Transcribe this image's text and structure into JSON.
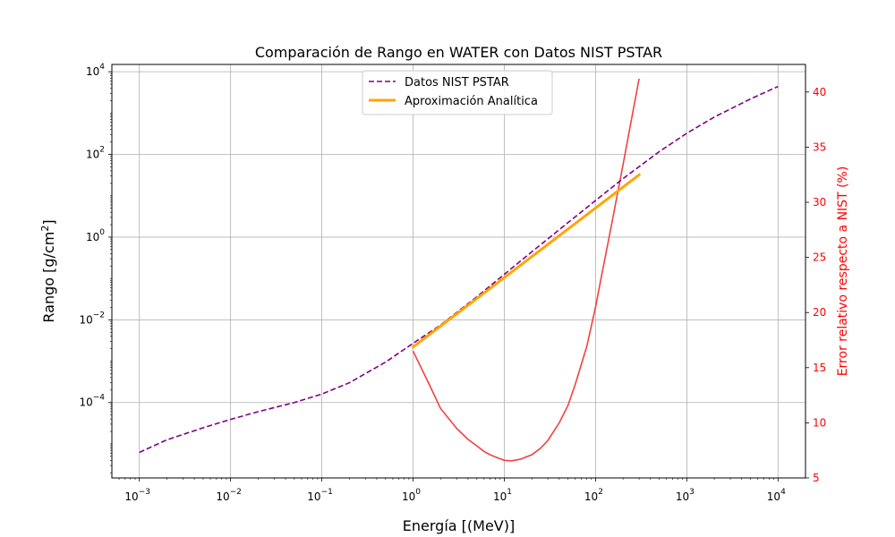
{
  "chart_data": {
    "type": "line",
    "title": "Comparación de Rango en WATER con Datos NIST PSTAR",
    "xlabel": "Energía [(MeV)]",
    "ylabel": "Rango [g/cm²]",
    "ylabel_parts": {
      "main": "Rango [g/cm",
      "sup": "2",
      "end": "]"
    },
    "y2label": "Error relativo respecto a NIST (%)",
    "xscale": "log",
    "yscale": "log",
    "xlim": [
      0.0005,
      20000
    ],
    "ylim": [
      1.5e-06,
      15000
    ],
    "y2lim": [
      5,
      42.5
    ],
    "grid": true,
    "legend_position": "top-center",
    "x_ticks": [
      {
        "value": 0.001,
        "base": "10",
        "exp": "−3"
      },
      {
        "value": 0.01,
        "base": "10",
        "exp": "−2"
      },
      {
        "value": 0.1,
        "base": "10",
        "exp": "−1"
      },
      {
        "value": 1,
        "base": "10",
        "exp": "0"
      },
      {
        "value": 10,
        "base": "10",
        "exp": "1"
      },
      {
        "value": 100,
        "base": "10",
        "exp": "2"
      },
      {
        "value": 1000,
        "base": "10",
        "exp": "3"
      },
      {
        "value": 10000,
        "base": "10",
        "exp": "4"
      }
    ],
    "y_ticks": [
      {
        "value": 0.0001,
        "base": "10",
        "exp": "−4"
      },
      {
        "value": 0.01,
        "base": "10",
        "exp": "−2"
      },
      {
        "value": 1,
        "base": "10",
        "exp": "0"
      },
      {
        "value": 100,
        "base": "10",
        "exp": "2"
      },
      {
        "value": 10000,
        "base": "10",
        "exp": "4"
      }
    ],
    "y2_ticks": [
      5,
      10,
      15,
      20,
      25,
      30,
      35,
      40
    ],
    "colors": {
      "nist": "#800080",
      "approx": "#ffa500",
      "error": "#f44040",
      "grid": "#b0b0b0",
      "y2axis": "#ff0000"
    },
    "series": [
      {
        "name": "Datos NIST PSTAR",
        "axis": "left",
        "style": "dashed",
        "x": [
          0.001,
          0.002,
          0.005,
          0.01,
          0.02,
          0.05,
          0.1,
          0.2,
          0.5,
          1,
          2,
          5,
          10,
          20,
          50,
          100,
          200,
          500,
          1000,
          2000,
          5000,
          10000
        ],
        "y": [
          6.2e-06,
          1.25e-05,
          2.45e-05,
          3.9e-05,
          6e-05,
          0.0001,
          0.00016,
          0.0003,
          0.00095,
          0.0027,
          0.0075,
          0.036,
          0.126,
          0.44,
          2.25,
          7.7,
          26.0,
          117,
          325,
          800,
          2200,
          4400
        ]
      },
      {
        "name": "Aproximación Analítica",
        "axis": "left",
        "style": "solid",
        "x": [
          1,
          300
        ],
        "y": [
          0.0022,
          32
        ]
      },
      {
        "name": "",
        "axis": "right",
        "style": "solid",
        "x": [
          1,
          1.5,
          2,
          3,
          4,
          5,
          6,
          7,
          8,
          10,
          12,
          15,
          20,
          25,
          30,
          40,
          50,
          60,
          80,
          100,
          120,
          150,
          200,
          250,
          300
        ],
        "y": [
          16.5,
          13.5,
          11.3,
          9.5,
          8.5,
          7.9,
          7.4,
          7.1,
          6.9,
          6.6,
          6.55,
          6.7,
          7.1,
          7.7,
          8.4,
          10.0,
          11.6,
          13.5,
          16.9,
          20.5,
          23.9,
          28.0,
          33.4,
          37.7,
          41.2
        ]
      }
    ]
  }
}
